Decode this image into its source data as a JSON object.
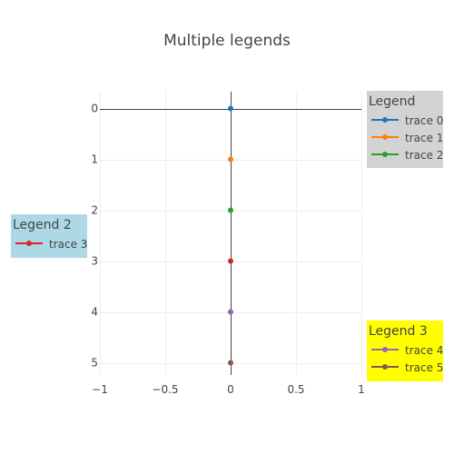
{
  "chart_data": {
    "type": "line",
    "title": "Multiple legends",
    "xlabel": "",
    "ylabel": "",
    "xlim": [
      -1,
      1
    ],
    "ylim": [
      5,
      0
    ],
    "y_reversed": true,
    "grid": true,
    "x_ticks": [
      {
        "value": -1,
        "label": "−1"
      },
      {
        "value": -0.5,
        "label": "−0.5"
      },
      {
        "value": 0,
        "label": "0"
      },
      {
        "value": 0.5,
        "label": "0.5"
      },
      {
        "value": 1,
        "label": "1"
      }
    ],
    "y_ticks": [
      {
        "value": 0,
        "label": "0"
      },
      {
        "value": 1,
        "label": "1"
      },
      {
        "value": 2,
        "label": "2"
      },
      {
        "value": 3,
        "label": "3"
      },
      {
        "value": 4,
        "label": "4"
      },
      {
        "value": 5,
        "label": "5"
      }
    ],
    "series": [
      {
        "name": "trace 0",
        "color": "#1f77b4",
        "x": [
          0
        ],
        "y": [
          0
        ]
      },
      {
        "name": "trace 1",
        "color": "#ff7f0e",
        "x": [
          0
        ],
        "y": [
          1
        ]
      },
      {
        "name": "trace 2",
        "color": "#2ca02c",
        "x": [
          0
        ],
        "y": [
          2
        ]
      },
      {
        "name": "trace 3",
        "color": "#d62728",
        "x": [
          0
        ],
        "y": [
          3
        ]
      },
      {
        "name": "trace 4",
        "color": "#9467bd",
        "x": [
          0
        ],
        "y": [
          4
        ]
      },
      {
        "name": "trace 5",
        "color": "#8c564b",
        "x": [
          0
        ],
        "y": [
          5
        ]
      }
    ],
    "legends": [
      {
        "title": "Legend",
        "placement": "top-right",
        "background": "#d3d3d3",
        "items": [
          "trace 0",
          "trace 1",
          "trace 2"
        ]
      },
      {
        "title": "Legend 2",
        "placement": "middle-left",
        "background": "#add8e6",
        "items": [
          "trace 3"
        ]
      },
      {
        "title": "Legend 3",
        "placement": "bottom-right",
        "background": "#ffff00",
        "items": [
          "trace 4",
          "trace 5"
        ]
      }
    ]
  }
}
